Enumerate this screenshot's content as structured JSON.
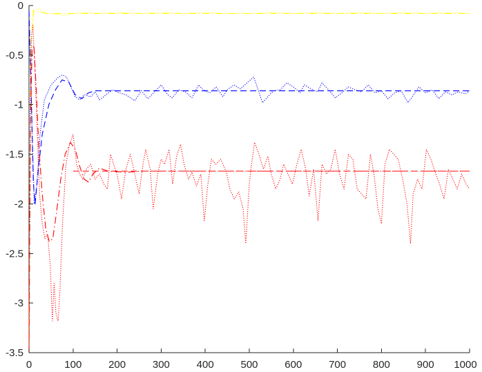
{
  "chart_data": {
    "type": "line",
    "title": "",
    "xlabel": "",
    "ylabel": "",
    "xlim": [
      0,
      1000
    ],
    "ylim": [
      -3.5,
      0
    ],
    "grid": false,
    "legend": "none",
    "x_ticks": [
      {
        "value": 0,
        "label": "0"
      },
      {
        "value": 100,
        "label": "100"
      },
      {
        "value": 200,
        "label": "200"
      },
      {
        "value": 300,
        "label": "300"
      },
      {
        "value": 400,
        "label": "400"
      },
      {
        "value": 500,
        "label": "500"
      },
      {
        "value": 600,
        "label": "600"
      },
      {
        "value": 700,
        "label": "700"
      },
      {
        "value": 800,
        "label": "800"
      },
      {
        "value": 900,
        "label": "900"
      },
      {
        "value": 1000,
        "label": "1000"
      }
    ],
    "y_ticks": [
      {
        "value": 0,
        "label": "0"
      },
      {
        "value": -0.5,
        "label": "-0.5"
      },
      {
        "value": -1,
        "label": "-1"
      },
      {
        "value": -1.5,
        "label": "-1.5"
      },
      {
        "value": -2,
        "label": "-2"
      },
      {
        "value": -2.5,
        "label": "-2.5"
      },
      {
        "value": -3,
        "label": "-3"
      },
      {
        "value": -3.5,
        "label": "-3.5"
      }
    ],
    "series": [
      {
        "color": "#ffff00",
        "style": "dotted",
        "points": [
          [
            0,
            -3.5
          ],
          [
            3,
            -0.8
          ],
          [
            7,
            -0.2
          ],
          [
            12,
            -0.05
          ],
          [
            20,
            -0.03
          ],
          [
            30,
            -0.06
          ],
          [
            40,
            -0.08
          ],
          [
            50,
            -0.08
          ],
          [
            60,
            -0.09
          ],
          [
            70,
            -0.09
          ],
          [
            80,
            -0.1
          ],
          [
            90,
            -0.09
          ],
          [
            100,
            -0.08
          ],
          [
            130,
            -0.07
          ],
          [
            160,
            -0.08
          ],
          [
            200,
            -0.07
          ],
          [
            250,
            -0.08
          ],
          [
            300,
            -0.07
          ],
          [
            350,
            -0.08
          ],
          [
            400,
            -0.07
          ],
          [
            450,
            -0.08
          ],
          [
            500,
            -0.08
          ],
          [
            550,
            -0.07
          ],
          [
            600,
            -0.08
          ],
          [
            650,
            -0.07
          ],
          [
            700,
            -0.08
          ],
          [
            750,
            -0.07
          ],
          [
            800,
            -0.08
          ],
          [
            850,
            -0.07
          ],
          [
            900,
            -0.08
          ],
          [
            950,
            -0.07
          ],
          [
            1000,
            -0.08
          ]
        ]
      },
      {
        "color": "#ffff00",
        "style": "dashdot",
        "points": [
          [
            0,
            -3.5
          ],
          [
            3,
            -1.0
          ],
          [
            6,
            -0.3
          ],
          [
            10,
            -0.05
          ],
          [
            20,
            -0.06
          ],
          [
            40,
            -0.08
          ],
          [
            70,
            -0.08
          ],
          [
            100,
            -0.08
          ],
          [
            1000,
            -0.08
          ]
        ]
      },
      {
        "color": "#0000ff",
        "style": "dotted",
        "points": [
          [
            0,
            -0.2
          ],
          [
            3,
            -0.5
          ],
          [
            7,
            -1.3
          ],
          [
            12,
            -2.0
          ],
          [
            18,
            -1.8
          ],
          [
            25,
            -1.3
          ],
          [
            35,
            -0.95
          ],
          [
            50,
            -0.8
          ],
          [
            65,
            -0.73
          ],
          [
            75,
            -0.7
          ],
          [
            85,
            -0.72
          ],
          [
            95,
            -0.82
          ],
          [
            105,
            -0.92
          ],
          [
            115,
            -0.95
          ],
          [
            125,
            -0.9
          ],
          [
            140,
            -0.92
          ],
          [
            150,
            -0.87
          ],
          [
            160,
            -0.95
          ],
          [
            175,
            -0.9
          ],
          [
            190,
            -0.85
          ],
          [
            205,
            -0.88
          ],
          [
            220,
            -0.9
          ],
          [
            240,
            -0.96
          ],
          [
            255,
            -0.86
          ],
          [
            270,
            -0.94
          ],
          [
            285,
            -0.87
          ],
          [
            300,
            -0.8
          ],
          [
            315,
            -0.9
          ],
          [
            325,
            -0.93
          ],
          [
            340,
            -0.85
          ],
          [
            355,
            -0.87
          ],
          [
            370,
            -0.93
          ],
          [
            385,
            -0.8
          ],
          [
            395,
            -0.85
          ],
          [
            410,
            -0.88
          ],
          [
            425,
            -0.82
          ],
          [
            440,
            -0.92
          ],
          [
            450,
            -0.85
          ],
          [
            465,
            -0.8
          ],
          [
            480,
            -0.84
          ],
          [
            490,
            -0.8
          ],
          [
            500,
            -0.76
          ],
          [
            510,
            -0.72
          ],
          [
            520,
            -0.85
          ],
          [
            530,
            -0.98
          ],
          [
            540,
            -0.93
          ],
          [
            555,
            -0.86
          ],
          [
            570,
            -0.85
          ],
          [
            585,
            -0.78
          ],
          [
            600,
            -0.82
          ],
          [
            615,
            -0.88
          ],
          [
            625,
            -0.8
          ],
          [
            640,
            -0.84
          ],
          [
            655,
            -0.87
          ],
          [
            665,
            -0.78
          ],
          [
            680,
            -0.85
          ],
          [
            695,
            -0.93
          ],
          [
            710,
            -0.88
          ],
          [
            725,
            -0.82
          ],
          [
            740,
            -0.85
          ],
          [
            755,
            -0.87
          ],
          [
            770,
            -0.8
          ],
          [
            785,
            -0.88
          ],
          [
            800,
            -0.86
          ],
          [
            815,
            -0.94
          ],
          [
            830,
            -0.88
          ],
          [
            845,
            -0.86
          ],
          [
            860,
            -0.98
          ],
          [
            870,
            -0.92
          ],
          [
            885,
            -0.82
          ],
          [
            900,
            -0.88
          ],
          [
            915,
            -0.85
          ],
          [
            930,
            -0.94
          ],
          [
            945,
            -0.87
          ],
          [
            960,
            -0.9
          ],
          [
            975,
            -0.87
          ],
          [
            990,
            -0.89
          ],
          [
            1000,
            -0.86
          ]
        ]
      },
      {
        "color": "#0000ff",
        "style": "dashed",
        "points": [
          [
            0,
            -0.05
          ],
          [
            5,
            -0.9
          ],
          [
            10,
            -1.8
          ],
          [
            14,
            -2.0
          ],
          [
            20,
            -1.7
          ],
          [
            30,
            -1.3
          ],
          [
            45,
            -1.0
          ],
          [
            60,
            -0.85
          ],
          [
            75,
            -0.75
          ],
          [
            90,
            -0.77
          ],
          [
            105,
            -0.9
          ],
          [
            120,
            -0.94
          ],
          [
            135,
            -0.88
          ],
          [
            150,
            -0.86
          ],
          [
            170,
            -0.86
          ],
          [
            200,
            -0.86
          ],
          [
            1000,
            -0.86
          ]
        ]
      },
      {
        "color": "#ff0000",
        "style": "dotted",
        "points": [
          [
            0,
            -3.5
          ],
          [
            3,
            -1.0
          ],
          [
            6,
            -0.3
          ],
          [
            9,
            -0.2
          ],
          [
            13,
            -0.6
          ],
          [
            18,
            -1.2
          ],
          [
            24,
            -1.9
          ],
          [
            30,
            -2.2
          ],
          [
            36,
            -2.35
          ],
          [
            42,
            -2.3
          ],
          [
            48,
            -2.6
          ],
          [
            53,
            -3.18
          ],
          [
            57,
            -2.8
          ],
          [
            61,
            -3.1
          ],
          [
            66,
            -3.18
          ],
          [
            70,
            -2.9
          ],
          [
            76,
            -2.2
          ],
          [
            84,
            -1.6
          ],
          [
            92,
            -1.4
          ],
          [
            100,
            -1.3
          ],
          [
            108,
            -1.6
          ],
          [
            115,
            -1.7
          ],
          [
            122,
            -1.75
          ],
          [
            130,
            -1.65
          ],
          [
            140,
            -1.6
          ],
          [
            150,
            -1.75
          ],
          [
            160,
            -1.7
          ],
          [
            170,
            -1.8
          ],
          [
            178,
            -1.85
          ],
          [
            185,
            -1.5
          ],
          [
            192,
            -1.6
          ],
          [
            200,
            -1.7
          ],
          [
            210,
            -1.95
          ],
          [
            220,
            -1.65
          ],
          [
            230,
            -1.5
          ],
          [
            240,
            -1.7
          ],
          [
            250,
            -1.9
          ],
          [
            258,
            -1.62
          ],
          [
            265,
            -1.45
          ],
          [
            275,
            -1.65
          ],
          [
            282,
            -2.05
          ],
          [
            292,
            -1.7
          ],
          [
            300,
            -1.55
          ],
          [
            308,
            -1.6
          ],
          [
            318,
            -1.45
          ],
          [
            326,
            -1.8
          ],
          [
            335,
            -1.52
          ],
          [
            344,
            -1.4
          ],
          [
            352,
            -1.6
          ],
          [
            362,
            -1.75
          ],
          [
            370,
            -1.68
          ],
          [
            380,
            -1.82
          ],
          [
            390,
            -1.7
          ],
          [
            398,
            -2.17
          ],
          [
            406,
            -1.8
          ],
          [
            414,
            -1.55
          ],
          [
            424,
            -1.6
          ],
          [
            435,
            -1.55
          ],
          [
            448,
            -1.68
          ],
          [
            456,
            -1.85
          ],
          [
            466,
            -1.95
          ],
          [
            476,
            -1.88
          ],
          [
            486,
            -2.05
          ],
          [
            492,
            -2.4
          ],
          [
            500,
            -1.8
          ],
          [
            505,
            -1.6
          ],
          [
            512,
            -1.38
          ],
          [
            522,
            -1.5
          ],
          [
            532,
            -1.65
          ],
          [
            542,
            -1.52
          ],
          [
            550,
            -1.7
          ],
          [
            560,
            -1.85
          ],
          [
            570,
            -1.75
          ],
          [
            578,
            -1.6
          ],
          [
            588,
            -1.7
          ],
          [
            598,
            -1.8
          ],
          [
            608,
            -1.6
          ],
          [
            618,
            -1.45
          ],
          [
            628,
            -1.65
          ],
          [
            636,
            -1.92
          ],
          [
            646,
            -1.65
          ],
          [
            656,
            -2.17
          ],
          [
            665,
            -1.6
          ],
          [
            675,
            -1.7
          ],
          [
            685,
            -1.65
          ],
          [
            695,
            -1.45
          ],
          [
            705,
            -1.7
          ],
          [
            715,
            -1.85
          ],
          [
            725,
            -1.5
          ],
          [
            735,
            -1.55
          ],
          [
            745,
            -1.85
          ],
          [
            755,
            -1.9
          ],
          [
            765,
            -1.95
          ],
          [
            775,
            -1.5
          ],
          [
            783,
            -1.7
          ],
          [
            792,
            -2.05
          ],
          [
            800,
            -2.2
          ],
          [
            808,
            -1.6
          ],
          [
            818,
            -1.45
          ],
          [
            828,
            -1.5
          ],
          [
            838,
            -1.55
          ],
          [
            848,
            -1.75
          ],
          [
            858,
            -2.0
          ],
          [
            866,
            -2.4
          ],
          [
            872,
            -1.9
          ],
          [
            882,
            -1.75
          ],
          [
            892,
            -1.85
          ],
          [
            902,
            -1.45
          ],
          [
            912,
            -1.55
          ],
          [
            922,
            -1.68
          ],
          [
            932,
            -1.8
          ],
          [
            942,
            -1.95
          ],
          [
            952,
            -1.65
          ],
          [
            962,
            -1.75
          ],
          [
            972,
            -1.85
          ],
          [
            982,
            -1.7
          ],
          [
            992,
            -1.8
          ],
          [
            1000,
            -1.85
          ]
        ]
      },
      {
        "color": "#ff0000",
        "style": "dashdot",
        "points": [
          [
            0,
            -3.5
          ],
          [
            3,
            -1.2
          ],
          [
            7,
            -0.45
          ],
          [
            11,
            -0.4
          ],
          [
            16,
            -0.8
          ],
          [
            22,
            -1.4
          ],
          [
            30,
            -1.9
          ],
          [
            38,
            -2.25
          ],
          [
            46,
            -2.38
          ],
          [
            54,
            -2.35
          ],
          [
            62,
            -2.1
          ],
          [
            72,
            -1.75
          ],
          [
            82,
            -1.5
          ],
          [
            94,
            -1.38
          ],
          [
            105,
            -1.45
          ],
          [
            115,
            -1.62
          ],
          [
            125,
            -1.75
          ],
          [
            135,
            -1.78
          ],
          [
            145,
            -1.7
          ],
          [
            160,
            -1.64
          ],
          [
            180,
            -1.67
          ],
          [
            220,
            -1.68
          ],
          [
            260,
            -1.67
          ],
          [
            300,
            -1.67
          ],
          [
            1000,
            -1.67
          ]
        ]
      },
      {
        "color": "#ff0000",
        "style": "dashed",
        "points": [
          [
            100,
            -1.67
          ],
          [
            1000,
            -1.67
          ]
        ]
      }
    ]
  }
}
